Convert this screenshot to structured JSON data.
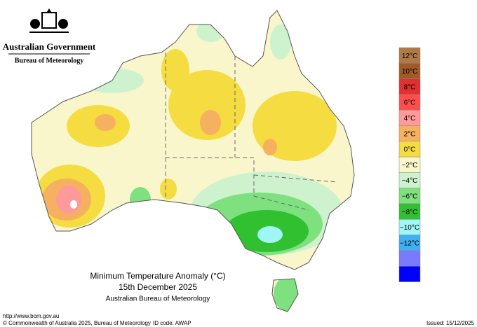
{
  "header": {
    "government": "Australian Government",
    "agency": "Bureau of Meteorology"
  },
  "map": {
    "title": "Minimum Temperature Anomaly (°C)",
    "date": "15th December 2025",
    "source": "Australian Bureau of Meteorology"
  },
  "legend": [
    {
      "label": "12°C",
      "color": "#a05a28"
    },
    {
      "label": "10°C",
      "color": "#e03030"
    },
    {
      "label": "8°C",
      "color": "#ff4d4d"
    },
    {
      "label": "6°C",
      "color": "#ff9a9a"
    },
    {
      "label": "4°C",
      "color": "#f5b060"
    },
    {
      "label": "2°C",
      "color": "#f5dc40"
    },
    {
      "label": "0°C",
      "color": "#f9f6cc"
    },
    {
      "label": "−2°C",
      "color": "#cdf2cd"
    },
    {
      "label": "−4°C",
      "color": "#7ee07e"
    },
    {
      "label": "−6°C",
      "color": "#30c030"
    },
    {
      "label": "−8°C",
      "color": "#a0f5f5"
    },
    {
      "label": "−10°C",
      "color": "#40b0f0"
    },
    {
      "label": "−12°C",
      "color": "#7a7aff"
    }
  ],
  "legend_top_color": "#b07a48",
  "legend_bottom_color": "#0000ff",
  "footer": {
    "url": "http://www.bom.gov.au",
    "copyright": "© Commonwealth of Australia 2025, Bureau of Meteorology",
    "id": "ID code: AWAP",
    "issued": "Issued: 15/12/2025"
  }
}
